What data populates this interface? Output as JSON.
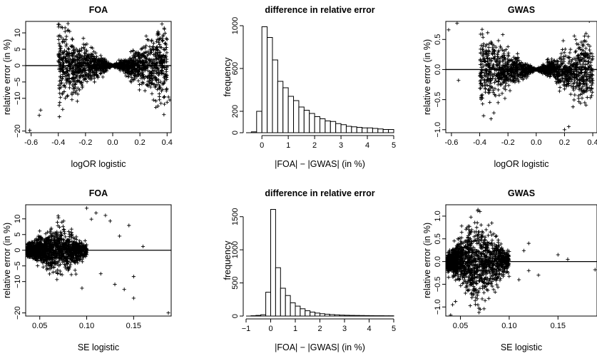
{
  "figure": {
    "panels": [
      {
        "id": "p1",
        "title": "FOA",
        "xlabel": "logOR logistic",
        "ylabel": "relative error (in %)"
      },
      {
        "id": "p2",
        "title": "difference in relative error",
        "xlabel": "|FOA| − |GWAS| (in %)",
        "ylabel": "frequency"
      },
      {
        "id": "p3",
        "title": "GWAS",
        "xlabel": "logOR logistic",
        "ylabel": "relative error (in %)"
      },
      {
        "id": "p4",
        "title": "FOA",
        "xlabel": "SE logistic",
        "ylabel": "relative error (in %)"
      },
      {
        "id": "p5",
        "title": "difference in relative error",
        "xlabel": "|FOA| − |GWAS| (in %)",
        "ylabel": "frequency"
      },
      {
        "id": "p6",
        "title": "GWAS",
        "xlabel": "SE logistic",
        "ylabel": "relative error (in %)"
      }
    ]
  },
  "chart_data": [
    {
      "id": "p1",
      "type": "scatter",
      "title": "FOA",
      "xlabel": "logOR logistic",
      "ylabel": "relative error (in %)",
      "xlim": [
        -0.64,
        0.43
      ],
      "ylim": [
        -20.5,
        13.5
      ],
      "xticks": [
        -0.6,
        -0.4,
        -0.2,
        0.0,
        0.2,
        0.4
      ],
      "xticklabels": [
        "-0.6",
        "-0.4",
        "-0.2",
        "0.0",
        "0.2",
        "0.4"
      ],
      "yticks": [
        -20,
        -10,
        -5,
        0,
        5,
        10
      ],
      "yticklabels": [
        "−20",
        "−10",
        "−5",
        "0",
        "5",
        "10"
      ],
      "hline": 0,
      "marker": "+",
      "grid": false,
      "cloud": {
        "shape": "bowtie",
        "x_range": [
          -0.4,
          0.4
        ],
        "center_x": 0,
        "slope": 26,
        "n": 1500
      },
      "outliers": [
        [
          -0.61,
          -19.8
        ],
        [
          -0.54,
          -15.2
        ],
        [
          -0.53,
          -13.6
        ],
        [
          -0.4,
          12.6
        ],
        [
          -0.37,
          11.6
        ],
        [
          -0.38,
          -6.6
        ],
        [
          0.38,
          -11.8
        ],
        [
          0.4,
          -11.2
        ],
        [
          0.41,
          -9.6
        ],
        [
          0.34,
          9.6
        ],
        [
          0.3,
          -10.5
        ],
        [
          -0.3,
          -8.4
        ],
        [
          0.42,
          -10.5
        ],
        [
          0.33,
          9.8
        ],
        [
          -0.35,
          10.4
        ]
      ]
    },
    {
      "id": "p2",
      "type": "bar",
      "title": "difference in relative error",
      "xlabel": "|FOA| − |GWAS| (in %)",
      "ylabel": "frequency",
      "xlim": [
        -0.6,
        5.0
      ],
      "ylim": [
        0,
        1040
      ],
      "xticks": [
        0,
        1,
        2,
        3,
        4,
        5
      ],
      "xticklabels": [
        "0",
        "1",
        "2",
        "3",
        "4",
        "5"
      ],
      "yticks": [
        0,
        200,
        600,
        1000
      ],
      "yticklabels": [
        "0",
        "200",
        "600",
        "1000"
      ],
      "bin_width": 0.2,
      "bin_starts": [
        -0.4,
        -0.2,
        0.0,
        0.2,
        0.4,
        0.6,
        0.8,
        1.0,
        1.2,
        1.4,
        1.6,
        1.8,
        2.0,
        2.2,
        2.4,
        2.6,
        2.8,
        3.0,
        3.2,
        3.4,
        3.6,
        3.8,
        4.0,
        4.2,
        4.4,
        4.6,
        4.8
      ],
      "values": [
        8,
        200,
        990,
        890,
        680,
        480,
        420,
        340,
        300,
        240,
        210,
        180,
        150,
        130,
        110,
        105,
        85,
        75,
        60,
        55,
        50,
        45,
        45,
        40,
        35,
        30,
        30
      ]
    },
    {
      "id": "p3",
      "type": "scatter",
      "title": "GWAS",
      "xlabel": "logOR logistic",
      "ylabel": "relative error (in %)",
      "xlim": [
        -0.64,
        0.43
      ],
      "ylim": [
        -1.05,
        0.8
      ],
      "xticks": [
        -0.6,
        -0.4,
        -0.2,
        0.0,
        0.2,
        0.4
      ],
      "xticklabels": [
        "-0.6",
        "-0.4",
        "-0.2",
        "0.0",
        "0.2",
        "0.4"
      ],
      "yticks": [
        -1.0,
        -0.5,
        0.0,
        0.5
      ],
      "yticklabels": [
        "−1.0",
        "−0.5",
        "0.0",
        "0.5"
      ],
      "hline": 0,
      "marker": "+",
      "grid": false,
      "cloud": {
        "shape": "bowtie",
        "x_range": [
          -0.4,
          0.4
        ],
        "center_x": 0,
        "slope": 1.3,
        "n": 1400
      },
      "outliers": [
        [
          -0.62,
          0.66
        ],
        [
          -0.56,
          0.77
        ],
        [
          -0.55,
          -0.18
        ],
        [
          -0.3,
          -0.72
        ],
        [
          -0.32,
          -0.82
        ],
        [
          -0.27,
          -0.55
        ],
        [
          0.2,
          -1.0
        ],
        [
          0.23,
          -0.95
        ],
        [
          0.26,
          -0.62
        ],
        [
          0.3,
          -0.48
        ],
        [
          0.35,
          -0.36
        ],
        [
          0.33,
          0.42
        ],
        [
          0.28,
          0.5
        ],
        [
          -0.2,
          0.38
        ],
        [
          0.38,
          0.22
        ]
      ]
    },
    {
      "id": "p4",
      "type": "scatter",
      "title": "FOA",
      "xlabel": "SE logistic",
      "ylabel": "relative error (in %)",
      "xlim": [
        0.035,
        0.19
      ],
      "ylim": [
        -21,
        14.5
      ],
      "xticks": [
        0.05,
        0.1,
        0.15
      ],
      "xticklabels": [
        "0.05",
        "0.10",
        "0.15"
      ],
      "yticks": [
        -20,
        -10,
        -5,
        0,
        5,
        10
      ],
      "yticklabels": [
        "−20",
        "−10",
        "−5",
        "0",
        "5",
        "10"
      ],
      "hline": 0,
      "marker": "+",
      "grid": false,
      "cloud": {
        "shape": "funnel",
        "x_range": [
          0.037,
          0.1
        ],
        "peak_x": 0.07,
        "peak_spread": 8,
        "n": 1500
      },
      "outliers": [
        [
          0.187,
          -20.0
        ],
        [
          0.15,
          -15.3
        ],
        [
          0.1,
          13.4
        ],
        [
          0.11,
          11.9
        ],
        [
          0.12,
          11.1
        ],
        [
          0.13,
          -10.9
        ],
        [
          0.14,
          -12.5
        ],
        [
          0.145,
          7.9
        ],
        [
          0.125,
          9.3
        ],
        [
          0.115,
          -7.5
        ],
        [
          0.105,
          9.9
        ],
        [
          0.135,
          4.5
        ],
        [
          0.15,
          -8.4
        ],
        [
          0.16,
          1.2
        ],
        [
          0.095,
          -12.1
        ]
      ]
    },
    {
      "id": "p5",
      "type": "bar",
      "title": "difference in relative error",
      "xlabel": "|FOA| − |GWAS| (in %)",
      "ylabel": "frequency",
      "xlim": [
        -1.0,
        5.0
      ],
      "ylim": [
        0,
        1680
      ],
      "xticks": [
        -1,
        0,
        1,
        2,
        3,
        4,
        5
      ],
      "xticklabels": [
        "−1",
        "0",
        "1",
        "2",
        "3",
        "4",
        "5"
      ],
      "yticks": [
        0,
        500,
        1000,
        1500
      ],
      "yticklabels": [
        "0",
        "500",
        "1000",
        "1500"
      ],
      "bin_width": 0.2,
      "bin_starts": [
        -0.8,
        -0.6,
        -0.4,
        -0.2,
        0.0,
        0.2,
        0.4,
        0.6,
        0.8,
        1.0,
        1.2,
        1.4,
        1.6,
        1.8,
        2.0,
        2.2,
        2.4,
        2.6,
        2.8,
        3.0,
        3.2,
        3.4,
        3.6,
        3.8,
        4.0,
        4.2,
        4.4,
        4.6,
        4.8
      ],
      "values": [
        5,
        10,
        20,
        360,
        1610,
        730,
        420,
        310,
        200,
        150,
        110,
        80,
        60,
        45,
        35,
        28,
        22,
        18,
        14,
        12,
        10,
        9,
        8,
        7,
        6,
        5,
        5,
        4,
        4
      ]
    },
    {
      "id": "p6",
      "type": "scatter",
      "title": "GWAS",
      "xlabel": "SE logistic",
      "ylabel": "relative error (in %)",
      "xlim": [
        0.035,
        0.19
      ],
      "ylim": [
        -1.2,
        1.25
      ],
      "xticks": [
        0.05,
        0.1,
        0.15
      ],
      "xticklabels": [
        "0.05",
        "0.10",
        "0.15"
      ],
      "yticks": [
        -1.0,
        -0.5,
        0.0,
        0.5,
        1.0
      ],
      "yticklabels": [
        "−1.0",
        "−0.5",
        "0.0",
        "0.5",
        "1.0"
      ],
      "hline": 0,
      "marker": "+",
      "grid": false,
      "cloud": {
        "shape": "funnel",
        "x_range": [
          0.037,
          0.1
        ],
        "peak_x": 0.068,
        "peak_spread": 0.9,
        "n": 1500
      },
      "outliers": [
        [
          0.188,
          -0.18
        ],
        [
          0.15,
          0.15
        ],
        [
          0.16,
          0.05
        ],
        [
          0.12,
          0.4
        ],
        [
          0.115,
          0.24
        ],
        [
          0.13,
          -0.3
        ],
        [
          0.07,
          1.1
        ],
        [
          0.068,
          1.14
        ],
        [
          0.04,
          -1.18
        ],
        [
          0.042,
          -0.95
        ],
        [
          0.045,
          -0.88
        ],
        [
          0.11,
          -0.4
        ],
        [
          0.12,
          -0.2
        ]
      ]
    }
  ]
}
